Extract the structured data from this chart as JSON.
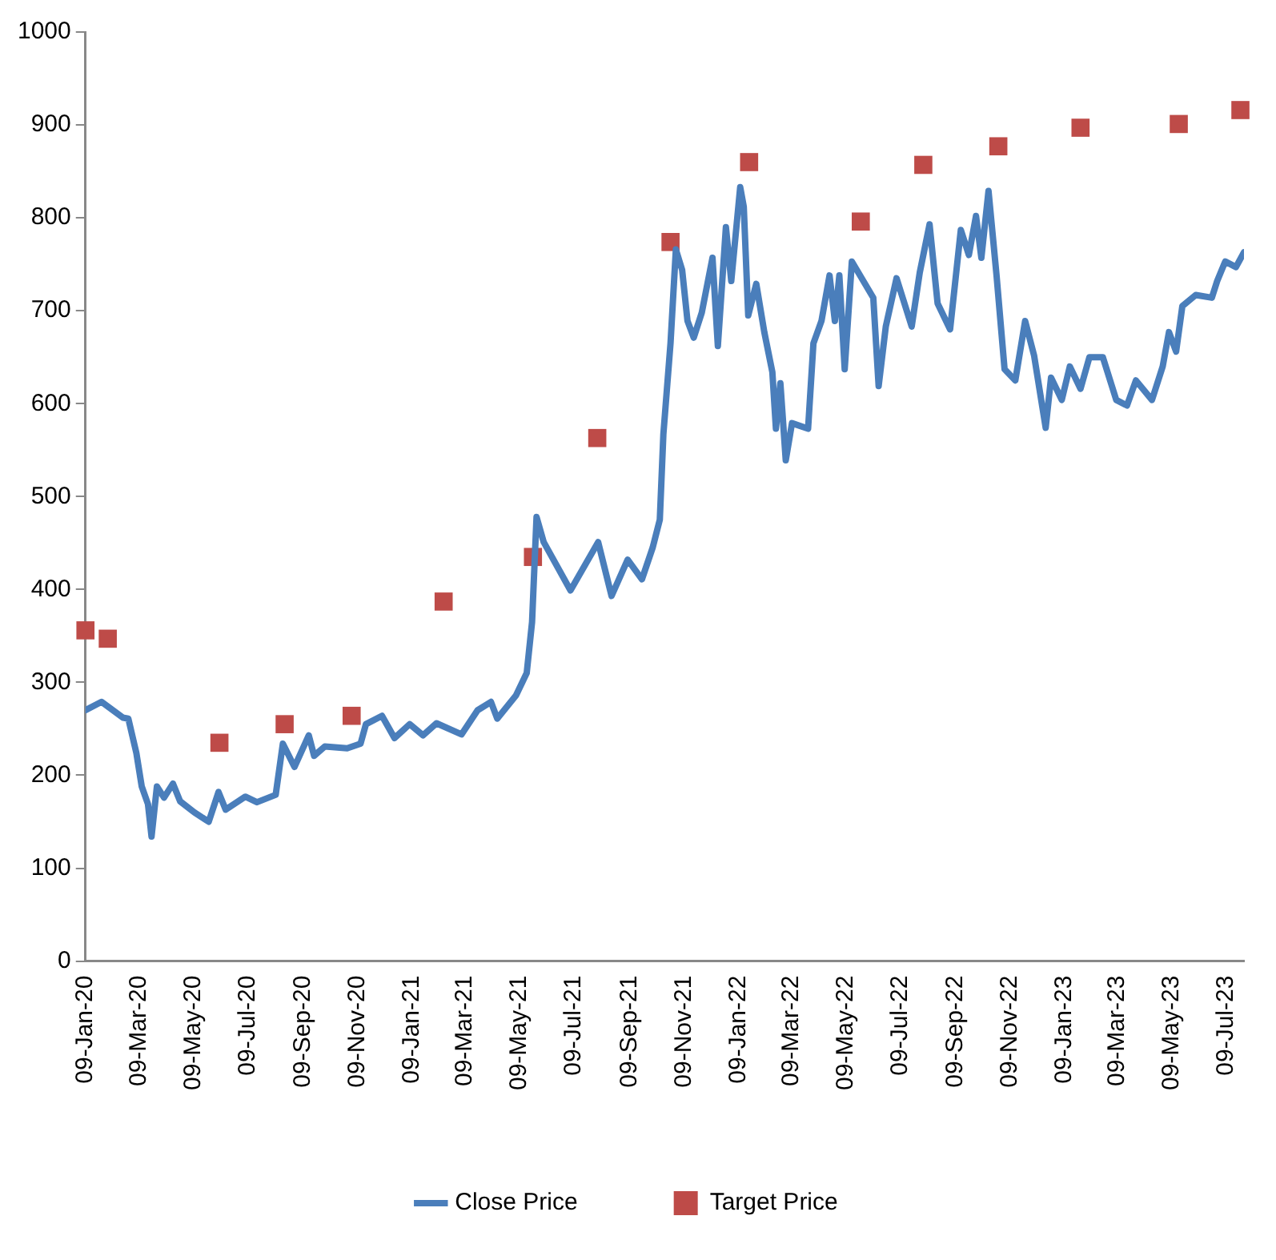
{
  "chart_data": {
    "type": "line",
    "legend": "bottom",
    "grid": false,
    "xlim": [
      "2020-01-09",
      "2023-07-29"
    ],
    "xticks": [
      {
        "value": "2020-01-09",
        "label": "09-Jan-20"
      },
      {
        "value": "2020-03-09",
        "label": "09-Mar-20"
      },
      {
        "value": "2020-05-09",
        "label": "09-May-20"
      },
      {
        "value": "2020-07-09",
        "label": "09-Jul-20"
      },
      {
        "value": "2020-09-09",
        "label": "09-Sep-20"
      },
      {
        "value": "2020-11-09",
        "label": "09-Nov-20"
      },
      {
        "value": "2021-01-09",
        "label": "09-Jan-21"
      },
      {
        "value": "2021-03-09",
        "label": "09-Mar-21"
      },
      {
        "value": "2021-05-09",
        "label": "09-May-21"
      },
      {
        "value": "2021-07-09",
        "label": "09-Jul-21"
      },
      {
        "value": "2021-09-09",
        "label": "09-Sep-21"
      },
      {
        "value": "2021-11-09",
        "label": "09-Nov-21"
      },
      {
        "value": "2022-01-09",
        "label": "09-Jan-22"
      },
      {
        "value": "2022-03-09",
        "label": "09-Mar-22"
      },
      {
        "value": "2022-05-09",
        "label": "09-May-22"
      },
      {
        "value": "2022-07-09",
        "label": "09-Jul-22"
      },
      {
        "value": "2022-09-09",
        "label": "09-Sep-22"
      },
      {
        "value": "2022-11-09",
        "label": "09-Nov-22"
      },
      {
        "value": "2023-01-09",
        "label": "09-Jan-23"
      },
      {
        "value": "2023-03-09",
        "label": "09-Mar-23"
      },
      {
        "value": "2023-05-09",
        "label": "09-May-23"
      },
      {
        "value": "2023-07-09",
        "label": "09-Jul-23"
      }
    ],
    "ylim": [
      0,
      1000
    ],
    "yticks": [
      0,
      100,
      200,
      300,
      400,
      500,
      600,
      700,
      800,
      900,
      1000
    ],
    "series": [
      {
        "name": "Close Price",
        "color": "#4a7ebb",
        "marker": "none",
        "line_style": "solid",
        "x": [
          "2020-01-09",
          "2020-01-27",
          "2020-02-20",
          "2020-02-26",
          "2020-03-06",
          "2020-03-12",
          "2020-03-19",
          "2020-03-23",
          "2020-03-29",
          "2020-04-06",
          "2020-04-16",
          "2020-04-24",
          "2020-05-10",
          "2020-05-26",
          "2020-06-06",
          "2020-06-14",
          "2020-07-06",
          "2020-07-19",
          "2020-08-09",
          "2020-08-17",
          "2020-08-30",
          "2020-09-15",
          "2020-09-21",
          "2020-10-03",
          "2020-10-28",
          "2020-11-12",
          "2020-11-18",
          "2020-12-06",
          "2020-12-20",
          "2021-01-06",
          "2021-01-21",
          "2021-02-05",
          "2021-03-05",
          "2021-03-23",
          "2021-04-07",
          "2021-04-14",
          "2021-05-05",
          "2021-05-17",
          "2021-05-23",
          "2021-05-28",
          "2021-06-05",
          "2021-07-05",
          "2021-08-05",
          "2021-08-20",
          "2021-09-07",
          "2021-09-23",
          "2021-10-05",
          "2021-10-13",
          "2021-10-17",
          "2021-10-25",
          "2021-10-31",
          "2021-11-07",
          "2021-11-13",
          "2021-11-20",
          "2021-11-29",
          "2021-12-11",
          "2021-12-17",
          "2021-12-26",
          "2022-01-01",
          "2022-01-11",
          "2022-01-15",
          "2022-01-20",
          "2022-01-29",
          "2022-02-07",
          "2022-02-16",
          "2022-02-20",
          "2022-02-25",
          "2022-03-03",
          "2022-03-10",
          "2022-03-28",
          "2022-04-03",
          "2022-04-12",
          "2022-04-21",
          "2022-04-27",
          "2022-05-02",
          "2022-05-08",
          "2022-05-16",
          "2022-06-09",
          "2022-06-15",
          "2022-06-23",
          "2022-07-05",
          "2022-07-22",
          "2022-07-31",
          "2022-08-11",
          "2022-08-20",
          "2022-09-03",
          "2022-09-15",
          "2022-09-24",
          "2022-10-02",
          "2022-10-08",
          "2022-10-16",
          "2022-10-25",
          "2022-11-03",
          "2022-11-15",
          "2022-11-26",
          "2022-12-06",
          "2022-12-19",
          "2022-12-25",
          "2023-01-06",
          "2023-01-15",
          "2023-01-27",
          "2023-02-06",
          "2023-02-21",
          "2023-03-08",
          "2023-03-20",
          "2023-03-30",
          "2023-04-17",
          "2023-04-29",
          "2023-05-06",
          "2023-05-14",
          "2023-05-21",
          "2023-06-05",
          "2023-06-23",
          "2023-06-29",
          "2023-07-08",
          "2023-07-20",
          "2023-07-29"
        ],
        "values": [
          270,
          279,
          262,
          261,
          224,
          188,
          169,
          134,
          188,
          176,
          191,
          172,
          160,
          150,
          182,
          163,
          177,
          171,
          179,
          234,
          209,
          243,
          221,
          231,
          229,
          234,
          255,
          264,
          240,
          255,
          243,
          256,
          244,
          270,
          279,
          261,
          286,
          310,
          365,
          478,
          451,
          399,
          451,
          393,
          432,
          411,
          445,
          475,
          567,
          665,
          766,
          744,
          689,
          671,
          698,
          757,
          662,
          790,
          732,
          833,
          812,
          695,
          729,
          677,
          634,
          573,
          622,
          539,
          579,
          573,
          665,
          689,
          738,
          689,
          738,
          637,
          753,
          714,
          619,
          683,
          735,
          683,
          741,
          793,
          708,
          680,
          787,
          760,
          802,
          757,
          829,
          738,
          637,
          625,
          689,
          652,
          574,
          628,
          604,
          640,
          616,
          650,
          650,
          604,
          598,
          625,
          604,
          640,
          677,
          656,
          705,
          717,
          714,
          732,
          753,
          747,
          763
        ]
      },
      {
        "name": "Target Price",
        "type": "scatter",
        "color": "#be4b48",
        "marker": "square",
        "x": [
          "2020-01-09",
          "2020-02-03",
          "2020-06-07",
          "2020-08-19",
          "2020-11-02",
          "2021-02-13",
          "2021-05-24",
          "2021-08-04",
          "2021-10-25",
          "2022-01-21",
          "2022-05-26",
          "2022-08-04",
          "2022-10-27",
          "2023-01-27",
          "2023-05-17",
          "2023-07-25"
        ],
        "values": [
          356,
          347,
          235,
          255,
          264,
          387,
          435,
          563,
          774,
          860,
          796,
          857,
          877,
          897,
          901,
          916
        ]
      }
    ]
  }
}
